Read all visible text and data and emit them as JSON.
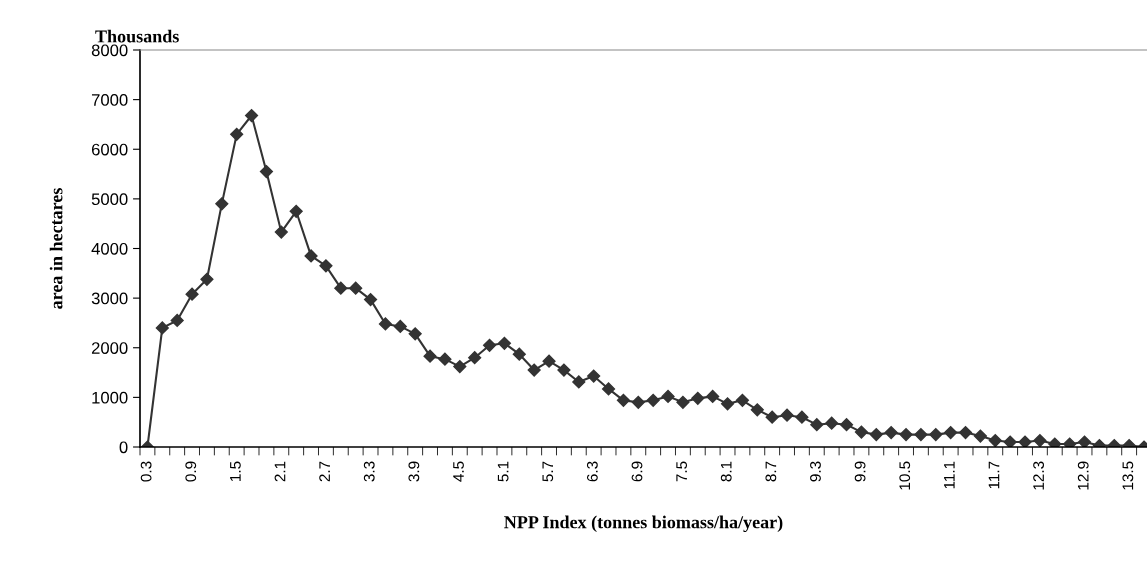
{
  "chart_data": {
    "type": "line",
    "xlabel": "NPP Index (tonnes biomass/ha/year)",
    "ylabel": "area in hectares",
    "annotations": [
      "Thousands"
    ],
    "categories": [
      "0.3",
      null,
      null,
      "0.9",
      null,
      null,
      "1.5",
      null,
      null,
      "2.1",
      null,
      null,
      "2.7",
      null,
      null,
      "3.3",
      null,
      null,
      "3.9",
      null,
      null,
      "4.5",
      null,
      null,
      "5.1",
      null,
      null,
      "5.7",
      null,
      null,
      "6.3",
      null,
      null,
      "6.9",
      null,
      null,
      "7.5",
      null,
      null,
      "8.1",
      null,
      null,
      "8.7",
      null,
      null,
      "9.3",
      null,
      null,
      "9.9",
      null,
      null,
      "10.5",
      null,
      null,
      "11.1",
      null,
      null,
      "11.7",
      null,
      null,
      "12.3",
      null,
      null,
      "12.9",
      null,
      null,
      "13.5",
      null
    ],
    "series": [
      {
        "color": "#333333",
        "values": [
          0,
          2400,
          2550,
          3080,
          3380,
          4900,
          6300,
          6680,
          5550,
          4330,
          4750,
          3850,
          3650,
          3200,
          3200,
          2970,
          2480,
          2430,
          2280,
          1830,
          1770,
          1620,
          1800,
          2050,
          2090,
          1870,
          1550,
          1730,
          1550,
          1310,
          1430,
          1170,
          940,
          900,
          940,
          1020,
          900,
          980,
          1020,
          870,
          940,
          750,
          600,
          640,
          600,
          450,
          480,
          450,
          300,
          250,
          290,
          250,
          250,
          250,
          290,
          290,
          220,
          130,
          100,
          100,
          130,
          60,
          60,
          100,
          30,
          30,
          30,
          0
        ]
      }
    ],
    "ylim": [
      0,
      8000
    ],
    "yticks": [
      0,
      1000,
      2000,
      3000,
      4000,
      5000,
      6000,
      7000,
      8000
    ],
    "grid": false,
    "legend": false,
    "marker": "diamond",
    "line_style": "solid"
  }
}
